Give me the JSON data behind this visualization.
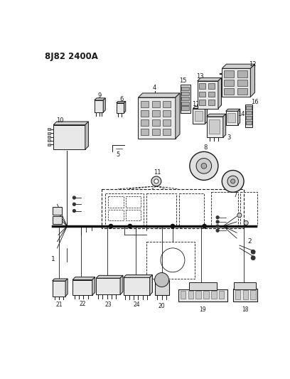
{
  "title": "8J82 2400A",
  "bg_color": "#ffffff",
  "line_color": "#1a1a1a",
  "fig_width": 4.08,
  "fig_height": 5.33,
  "dpi": 100,
  "gray": "#888888",
  "lgray": "#bbbbbb",
  "dgray": "#555555",
  "title_fontsize": 8.5,
  "label_fontsize": 6.0
}
